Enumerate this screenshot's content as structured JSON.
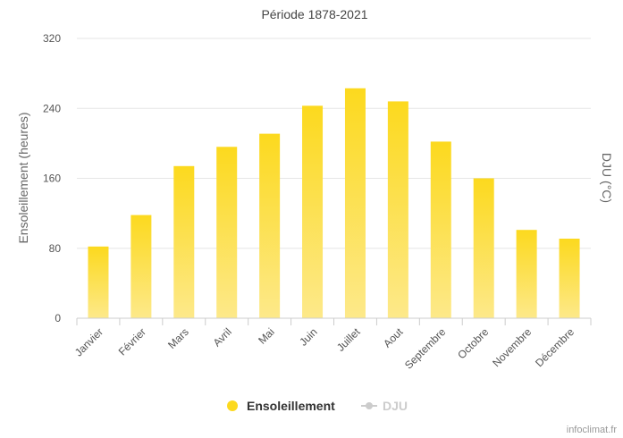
{
  "chart_data": {
    "type": "bar",
    "title": "Période 1878-2021",
    "ylabel": "Ensoleillement (heures)",
    "y2label": "DJU (°C)",
    "ylim": [
      0,
      320
    ],
    "yticks": [
      0,
      80,
      160,
      240,
      320
    ],
    "categories": [
      "Janvier",
      "Février",
      "Mars",
      "Avril",
      "Mai",
      "Juin",
      "Juillet",
      "Aout",
      "Septembre",
      "Octobre",
      "Novembre",
      "Décembre"
    ],
    "series": [
      {
        "name": "Ensoleillement",
        "color": "#fcd91e",
        "values": [
          82,
          118,
          174,
          196,
          211,
          243,
          263,
          248,
          202,
          160,
          101,
          91
        ]
      }
    ],
    "legend": [
      {
        "label": "Ensoleillement",
        "color": "#fcd91e",
        "state": "visible"
      },
      {
        "label": "DJU",
        "color": "#cccccc",
        "state": "hidden"
      }
    ],
    "grid": true,
    "legend_position": "bottom-center"
  },
  "credit": "infoclimat.fr"
}
